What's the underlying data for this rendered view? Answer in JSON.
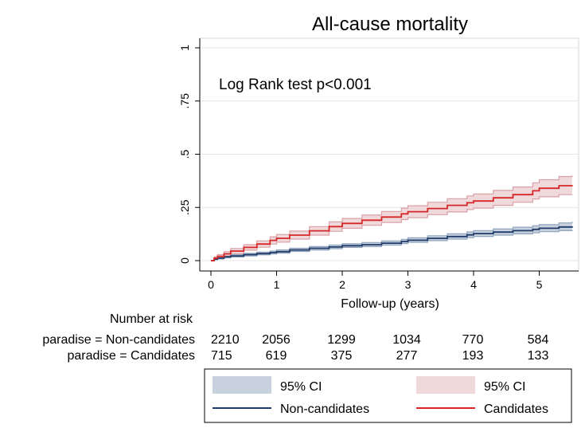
{
  "chart_data": {
    "type": "line",
    "subtype": "kaplan-meier",
    "title": "All-cause mortality",
    "xlabel": "Follow-up (years)",
    "ylabel": "",
    "xlim": [
      0,
      5.5
    ],
    "ylim": [
      0,
      1
    ],
    "x_ticks": [
      "0",
      "1",
      "2",
      "3",
      "4",
      "5"
    ],
    "x_tick_values": [
      0,
      1,
      2,
      3,
      4,
      5
    ],
    "y_ticks": [
      "0",
      ".25",
      ".5",
      ".75",
      "1"
    ],
    "y_tick_values": [
      0,
      0.25,
      0.5,
      0.75,
      1
    ],
    "grid": true,
    "annotation": "Log Rank test p<0.001",
    "series": [
      {
        "name": "Non-candidates",
        "color": "#1f3b68",
        "ci_color": "#c8d1de",
        "ci_edge_color": "#8ea3bd",
        "x": [
          0,
          0.05,
          0.1,
          0.2,
          0.3,
          0.5,
          0.7,
          0.9,
          1.0,
          1.2,
          1.5,
          1.8,
          2.0,
          2.3,
          2.6,
          2.9,
          3.0,
          3.3,
          3.6,
          3.9,
          4.0,
          4.3,
          4.6,
          4.9,
          5.0,
          5.3,
          5.5
        ],
        "y": [
          0,
          0.007,
          0.012,
          0.018,
          0.022,
          0.028,
          0.033,
          0.038,
          0.042,
          0.05,
          0.058,
          0.064,
          0.07,
          0.075,
          0.082,
          0.09,
          0.096,
          0.105,
          0.113,
          0.121,
          0.127,
          0.134,
          0.141,
          0.147,
          0.152,
          0.158,
          0.162
        ],
        "lower": [
          0,
          0.004,
          0.008,
          0.013,
          0.017,
          0.022,
          0.027,
          0.031,
          0.035,
          0.043,
          0.05,
          0.056,
          0.062,
          0.066,
          0.073,
          0.08,
          0.086,
          0.094,
          0.101,
          0.108,
          0.114,
          0.12,
          0.126,
          0.131,
          0.136,
          0.141,
          0.144
        ],
        "upper": [
          0,
          0.011,
          0.017,
          0.024,
          0.028,
          0.034,
          0.04,
          0.045,
          0.05,
          0.058,
          0.066,
          0.073,
          0.079,
          0.085,
          0.092,
          0.1,
          0.107,
          0.117,
          0.126,
          0.135,
          0.141,
          0.149,
          0.157,
          0.164,
          0.169,
          0.177,
          0.183
        ]
      },
      {
        "name": "Candidates",
        "color": "#d62728",
        "ci_color": "#efd9db",
        "ci_edge_color": "#d9a0a6",
        "x": [
          0,
          0.05,
          0.1,
          0.2,
          0.3,
          0.5,
          0.7,
          0.9,
          1.0,
          1.2,
          1.5,
          1.8,
          2.0,
          2.3,
          2.6,
          2.9,
          3.0,
          3.3,
          3.6,
          3.9,
          4.0,
          4.3,
          4.6,
          4.9,
          5.0,
          5.3,
          5.5
        ],
        "y": [
          0,
          0.012,
          0.02,
          0.032,
          0.045,
          0.062,
          0.078,
          0.095,
          0.105,
          0.12,
          0.14,
          0.16,
          0.175,
          0.19,
          0.205,
          0.22,
          0.23,
          0.245,
          0.26,
          0.272,
          0.28,
          0.295,
          0.31,
          0.328,
          0.34,
          0.352,
          0.355
        ],
        "lower": [
          0,
          0.006,
          0.012,
          0.022,
          0.033,
          0.049,
          0.063,
          0.078,
          0.087,
          0.101,
          0.12,
          0.138,
          0.152,
          0.166,
          0.179,
          0.193,
          0.202,
          0.216,
          0.229,
          0.24,
          0.247,
          0.26,
          0.274,
          0.29,
          0.3,
          0.31,
          0.312
        ],
        "upper": [
          0,
          0.018,
          0.028,
          0.042,
          0.057,
          0.075,
          0.093,
          0.112,
          0.123,
          0.139,
          0.16,
          0.182,
          0.198,
          0.214,
          0.231,
          0.247,
          0.258,
          0.274,
          0.291,
          0.304,
          0.313,
          0.33,
          0.346,
          0.366,
          0.38,
          0.395,
          0.4
        ]
      }
    ],
    "risk_table": {
      "header": "Number at risk",
      "rows": [
        {
          "label": "paradise = Non-candidates",
          "values": [
            "2210",
            "2056",
            "1299",
            "1034",
            "770",
            "584"
          ]
        },
        {
          "label": "paradise = Candidates",
          "values": [
            "715",
            "619",
            "375",
            "277",
            "193",
            "133"
          ]
        }
      ]
    },
    "legend": {
      "placement": "bottom",
      "entries": [
        {
          "label": "95% CI",
          "kind": "ci",
          "series": 0
        },
        {
          "label": "95% CI",
          "kind": "ci",
          "series": 1
        },
        {
          "label": "Non-candidates",
          "kind": "line",
          "series": 0
        },
        {
          "label": "Candidates",
          "kind": "line",
          "series": 1
        }
      ]
    }
  }
}
